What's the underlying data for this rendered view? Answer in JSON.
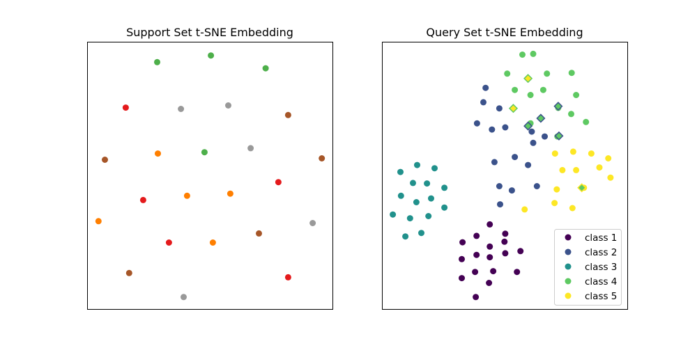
{
  "chart_data": [
    {
      "type": "scatter",
      "title": "Support Set t-SNE Embedding",
      "xlabel": "",
      "ylabel": "",
      "xlim": [
        0,
        100
      ],
      "ylim": [
        0,
        100
      ],
      "grid": false,
      "series": [
        {
          "color": "#4daf4a",
          "points": [
            [
              28.4,
              92.5
            ],
            [
              50.3,
              95.0
            ],
            [
              72.6,
              90.2
            ],
            [
              47.7,
              58.8
            ]
          ]
        },
        {
          "color": "#e41a1c",
          "points": [
            [
              15.6,
              75.5
            ],
            [
              22.7,
              40.9
            ],
            [
              77.8,
              47.6
            ],
            [
              33.2,
              25.0
            ],
            [
              81.8,
              12.0
            ]
          ]
        },
        {
          "color": "#999999",
          "points": [
            [
              38.1,
              75.0
            ],
            [
              57.4,
              76.3
            ],
            [
              66.5,
              60.3
            ],
            [
              91.8,
              32.3
            ],
            [
              39.2,
              4.6
            ]
          ]
        },
        {
          "color": "#a65628",
          "points": [
            [
              81.8,
              72.7
            ],
            [
              7.1,
              56.0
            ],
            [
              95.5,
              56.5
            ],
            [
              69.9,
              28.4
            ],
            [
              17.0,
              13.6
            ]
          ]
        },
        {
          "color": "#ff7f00",
          "points": [
            [
              28.7,
              58.3
            ],
            [
              40.6,
              42.5
            ],
            [
              58.2,
              43.3
            ],
            [
              4.5,
              33.0
            ],
            [
              51.1,
              25.0
            ]
          ]
        }
      ]
    },
    {
      "type": "scatter",
      "title": "Query Set t-SNE Embedding",
      "xlabel": "",
      "ylabel": "",
      "xlim": [
        0,
        100
      ],
      "ylim": [
        0,
        100
      ],
      "grid": false,
      "legend_position": "lower-right",
      "series": [
        {
          "name": "class 1",
          "color": "#440154",
          "points": [
            [
              32.7,
              25.1
            ],
            [
              38.4,
              27.5
            ],
            [
              43.8,
              31.8
            ],
            [
              43.8,
              23.5
            ],
            [
              43.8,
              19.5
            ],
            [
              38.4,
              20.4
            ],
            [
              32.4,
              18.8
            ],
            [
              37.8,
              14.0
            ],
            [
              43.5,
              9.9
            ],
            [
              32.4,
              11.7
            ],
            [
              38.1,
              4.6
            ],
            [
              45.2,
              14.3
            ],
            [
              54.9,
              14.0
            ],
            [
              50.1,
              21.0
            ],
            [
              50.1,
              28.3
            ],
            [
              49.8,
              25.3
            ],
            [
              56.3,
              21.8
            ]
          ]
        },
        {
          "name": "class 2",
          "color": "#3b528b",
          "points": [
            [
              42.1,
              82.9
            ],
            [
              41.2,
              77.5
            ],
            [
              47.7,
              75.2
            ],
            [
              38.6,
              69.6
            ],
            [
              44.7,
              67.3
            ],
            [
              50.1,
              68.1
            ],
            [
              60.9,
              66.5
            ],
            [
              66.2,
              64.7
            ],
            [
              61.5,
              62.3
            ],
            [
              45.7,
              55.1
            ],
            [
              54.0,
              57.0
            ],
            [
              59.4,
              54.0
            ],
            [
              47.7,
              46.1
            ],
            [
              52.8,
              44.5
            ],
            [
              63.0,
              46.1
            ],
            [
              48.0,
              39.3
            ]
          ]
        },
        {
          "name": "class 3",
          "color": "#21918c",
          "points": [
            [
              7.4,
              51.4
            ],
            [
              14.2,
              54.0
            ],
            [
              21.3,
              52.8
            ],
            [
              12.5,
              47.3
            ],
            [
              18.2,
              47.1
            ],
            [
              25.3,
              45.5
            ],
            [
              7.6,
              42.5
            ],
            [
              13.9,
              40.1
            ],
            [
              19.9,
              41.5
            ],
            [
              25.3,
              38.1
            ],
            [
              4.3,
              35.5
            ],
            [
              11.3,
              34.1
            ],
            [
              18.8,
              34.9
            ],
            [
              9.4,
              27.3
            ],
            [
              15.9,
              28.6
            ]
          ]
        },
        {
          "name": "class 4",
          "color": "#5ec962",
          "points": [
            [
              57.1,
              95.3
            ],
            [
              61.5,
              95.6
            ],
            [
              50.9,
              88.2
            ],
            [
              67.1,
              88.2
            ],
            [
              77.2,
              88.5
            ],
            [
              54.0,
              82.1
            ],
            [
              60.4,
              80.2
            ],
            [
              65.6,
              82.1
            ],
            [
              79.0,
              80.2
            ],
            [
              77.0,
              73.1
            ],
            [
              83.0,
              70.1
            ],
            [
              60.4,
              69.6
            ],
            [
              71.7,
              75.4
            ],
            [
              64.6,
              71.5
            ],
            [
              71.4,
              64.7
            ]
          ]
        },
        {
          "name": "class 5",
          "color": "#fde725",
          "points": [
            [
              70.4,
              58.3
            ],
            [
              77.8,
              59.0
            ],
            [
              85.2,
              58.3
            ],
            [
              92.1,
              56.5
            ],
            [
              73.4,
              52.1
            ],
            [
              79.0,
              52.1
            ],
            [
              88.5,
              53.1
            ],
            [
              93.0,
              49.3
            ],
            [
              71.1,
              44.9
            ],
            [
              82.2,
              45.5
            ],
            [
              70.2,
              39.8
            ],
            [
              77.5,
              37.9
            ],
            [
              58.0,
              37.4
            ]
          ]
        }
      ],
      "highlighted": {
        "marker": "diamond",
        "points": [
          {
            "x": 59.4,
            "y": 86.4,
            "fill": "#fde725",
            "edge": "#5ec962"
          },
          {
            "x": 53.4,
            "y": 75.2,
            "fill": "#fde725",
            "edge": "#5ec962"
          },
          {
            "x": 71.7,
            "y": 76.0,
            "fill": "#5ec962",
            "edge": "#3b528b"
          },
          {
            "x": 64.6,
            "y": 71.5,
            "fill": "#5ec962",
            "edge": "#3b528b"
          },
          {
            "x": 59.4,
            "y": 68.6,
            "fill": "#5ec962",
            "edge": "#3b528b"
          },
          {
            "x": 72.0,
            "y": 64.9,
            "fill": "#5ec962",
            "edge": "#3b528b"
          },
          {
            "x": 81.3,
            "y": 45.5,
            "fill": "#5ec962",
            "edge": "#fde725"
          }
        ]
      }
    }
  ]
}
